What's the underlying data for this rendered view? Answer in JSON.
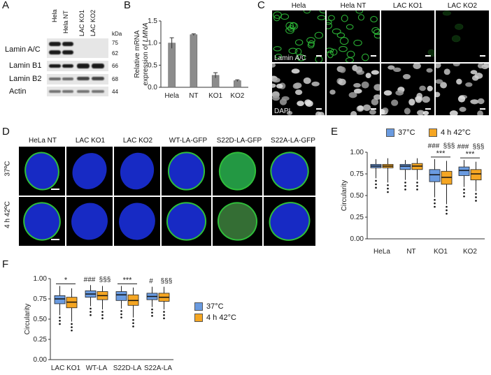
{
  "panels": {
    "A": {
      "label": "A",
      "lanes": [
        "Hela",
        "Hela NT",
        "LAC KO1",
        "LAC KO2"
      ],
      "kda_header": "kDa",
      "rows": [
        {
          "name": "Lamin A/C",
          "kda": [
            "75",
            "62"
          ]
        },
        {
          "name": "Lamin B1",
          "kda": [
            "66"
          ]
        },
        {
          "name": "Lamin B2",
          "kda": [
            "68"
          ]
        },
        {
          "name": "Actin",
          "kda": [
            "44"
          ]
        }
      ]
    },
    "B": {
      "label": "B"
    },
    "C": {
      "label": "C",
      "columns": [
        "Hela",
        "Hela NT",
        "LAC KO1",
        "LAC KO2"
      ],
      "row_labels": [
        "Lamin A/C",
        "DAPI"
      ]
    },
    "D": {
      "label": "D",
      "columns": [
        "HeLa NT",
        "LAC KO1",
        "LAC KO2",
        "WT-LA-GFP",
        "S22D-LA-GFP",
        "S22A-LA-GFP"
      ],
      "row_labels": [
        "37ºC",
        "4 h 42ºC"
      ]
    },
    "E": {
      "label": "E"
    },
    "F": {
      "label": "F"
    }
  },
  "colors": {
    "blue": "#6a9be0",
    "orange": "#f5a623",
    "bar": "#8c8c8c",
    "lamin_green": "#2fbf3a",
    "dapi_blue": "#1a2fd9"
  },
  "chart_data": [
    {
      "id": "B",
      "type": "bar",
      "ylabel_line1": "Relative mRNA",
      "ylabel_line2": "expression of LMNA",
      "categories": [
        "Hela",
        "NT",
        "KO1",
        "KO2"
      ],
      "values": [
        1.0,
        1.19,
        0.27,
        0.15
      ],
      "errors": [
        0.12,
        0.02,
        0.06,
        0.02
      ],
      "ylim": [
        0,
        1.5
      ],
      "yticks": [
        "0.0",
        "0.5",
        "1.0",
        "1.5"
      ]
    },
    {
      "id": "E",
      "type": "box",
      "ylabel": "Circularity",
      "categories": [
        "HeLa",
        "NT",
        "KO1",
        "KO2"
      ],
      "legend": [
        "37°C",
        "4 h 42°C"
      ],
      "ylim": [
        0,
        1
      ],
      "yticks": [
        "0.00",
        "0.25",
        "0.50",
        "0.75",
        "1.00"
      ],
      "series": [
        {
          "name": "37°C",
          "boxes": [
            {
              "q1": 0.82,
              "med": 0.84,
              "q3": 0.86,
              "lo": 0.7,
              "hi": 0.92
            },
            {
              "q1": 0.8,
              "med": 0.84,
              "q3": 0.86,
              "lo": 0.68,
              "hi": 0.91
            },
            {
              "q1": 0.66,
              "med": 0.74,
              "q3": 0.8,
              "lo": 0.48,
              "hi": 0.92
            },
            {
              "q1": 0.73,
              "med": 0.79,
              "q3": 0.83,
              "lo": 0.6,
              "hi": 0.91
            }
          ]
        },
        {
          "name": "4 h 42°C",
          "boxes": [
            {
              "q1": 0.82,
              "med": 0.84,
              "q3": 0.86,
              "lo": 0.65,
              "hi": 0.93
            },
            {
              "q1": 0.8,
              "med": 0.84,
              "q3": 0.87,
              "lo": 0.68,
              "hi": 0.93
            },
            {
              "q1": 0.63,
              "med": 0.71,
              "q3": 0.78,
              "lo": 0.4,
              "hi": 0.9
            },
            {
              "q1": 0.68,
              "med": 0.75,
              "q3": 0.8,
              "lo": 0.55,
              "hi": 0.89
            }
          ]
        }
      ],
      "annotations": [
        {
          "cat": 2,
          "hash": "###",
          "sect": "§§§",
          "stars": "***"
        },
        {
          "cat": 3,
          "hash": "###",
          "sect": "§§§",
          "stars": "***"
        }
      ]
    },
    {
      "id": "F",
      "type": "box",
      "ylabel": "Circularity",
      "categories": [
        "LAC KO1",
        "WT-LA",
        "S22D-LA",
        "S22A-LA"
      ],
      "legend": [
        "37°C",
        "4 h 42°C"
      ],
      "ylim": [
        0,
        1
      ],
      "yticks": [
        "0.00",
        "0.25",
        "0.50",
        "0.75",
        "1.00"
      ],
      "series": [
        {
          "name": "37°C",
          "boxes": [
            {
              "q1": 0.69,
              "med": 0.75,
              "q3": 0.79,
              "lo": 0.55,
              "hi": 0.91
            },
            {
              "q1": 0.77,
              "med": 0.81,
              "q3": 0.85,
              "lo": 0.66,
              "hi": 0.92
            },
            {
              "q1": 0.73,
              "med": 0.8,
              "q3": 0.84,
              "lo": 0.63,
              "hi": 0.91
            },
            {
              "q1": 0.74,
              "med": 0.78,
              "q3": 0.82,
              "lo": 0.65,
              "hi": 0.9
            }
          ]
        },
        {
          "name": "4 h 42°C",
          "boxes": [
            {
              "q1": 0.64,
              "med": 0.71,
              "q3": 0.77,
              "lo": 0.47,
              "hi": 0.88
            },
            {
              "q1": 0.74,
              "med": 0.79,
              "q3": 0.84,
              "lo": 0.62,
              "hi": 0.91
            },
            {
              "q1": 0.67,
              "med": 0.73,
              "q3": 0.8,
              "lo": 0.52,
              "hi": 0.89
            },
            {
              "q1": 0.72,
              "med": 0.77,
              "q3": 0.82,
              "lo": 0.62,
              "hi": 0.9
            }
          ]
        }
      ],
      "annotations": [
        {
          "cat": 0,
          "stars": "*"
        },
        {
          "cat": 1,
          "hash": "###",
          "sect": "§§§"
        },
        {
          "cat": 2,
          "stars": "***"
        },
        {
          "cat": 3,
          "hash": "#",
          "sect": "§§§"
        }
      ]
    }
  ]
}
